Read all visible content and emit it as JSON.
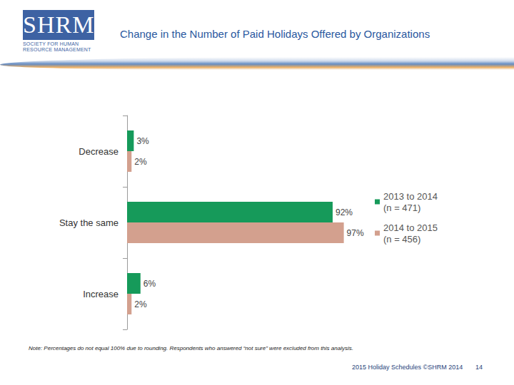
{
  "slide": {
    "logo": "SHRM",
    "logo_subtitle": [
      "SOCIETY FOR HUMAN",
      "RESOURCE MANAGEMENT"
    ],
    "note": "Note: Percentages do not equal 100% due to rounding. Respondents who answered “not sure” were excluded from this analysis.",
    "footer": "2015 Holiday Schedules ©SHRM 2014",
    "page": "14"
  },
  "chart_data": {
    "type": "bar",
    "title": "Change in the Number of Paid Holidays Offered by Organizations",
    "orientation": "horizontal",
    "categories": [
      "Decrease",
      "Stay the same",
      "Increase"
    ],
    "series": [
      {
        "name": "2013 to 2014\n(n = 471)",
        "color": "#169a5a",
        "values": [
          3,
          92,
          6
        ],
        "value_labels": [
          "3%",
          "92%",
          "6%"
        ]
      },
      {
        "name": "2014 to 2015\n(n = 456)",
        "color": "#d3a08e",
        "values": [
          2,
          97,
          2
        ],
        "value_labels": [
          "2%",
          "97%",
          "2%"
        ]
      }
    ],
    "xlim": [
      0,
      100
    ],
    "grid": false,
    "legend": "right",
    "data_labels": true,
    "tick_labels": "y"
  }
}
